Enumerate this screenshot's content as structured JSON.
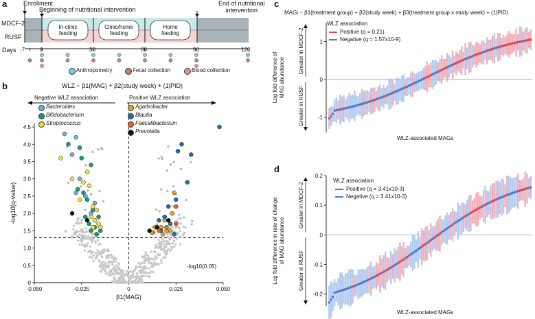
{
  "panel_a": {
    "letter": "a",
    "enrollment": "Enrollment",
    "beginning": "Beginning of nutritional intervention",
    "end_line1": "End of nutritional",
    "end_line2": "intervention",
    "arm1": "MDCF-2",
    "arm2": "RUSF",
    "phases": [
      {
        "line1": "In-clinic",
        "line2": "feeding"
      },
      {
        "line1": "Clinic/home",
        "line2": "feeding"
      },
      {
        "line1": "Home",
        "line2": "feeding"
      }
    ],
    "days_label": "Days",
    "day_ticks": [
      "-7",
      "0",
      "30",
      "60",
      "90",
      "120"
    ],
    "legend": [
      "Anthropometry",
      "Fecal collection",
      "Blood collection"
    ],
    "colors": {
      "mdcf": "#c8e8ea",
      "rusf": "#f4d4d4",
      "outer": "#a9b3b8",
      "anthro": "#7ec8e3",
      "fecal": "#b5866a",
      "blood": "#ee8f8f"
    }
  },
  "panel_b": {
    "letter": "b",
    "title": "WLZ ~ β1(MAG) + β2(study week) + (1|PID)",
    "neg_header": "Negative WLZ association",
    "pos_header": "Positive WLZ association",
    "legend_neg": [
      {
        "name": "Bacteroides",
        "color": "#6fb1dc"
      },
      {
        "name": "Bifidobacterium",
        "color": "#1b9a7a"
      },
      {
        "name": "Streptococcus",
        "color": "#f0e040"
      }
    ],
    "legend_pos": [
      {
        "name": "Agathobacter",
        "color": "#e8a21a"
      },
      {
        "name": "Blautia",
        "color": "#1f6fa8"
      },
      {
        "name": "Faecalibacterium",
        "color": "#d96a1e"
      },
      {
        "name": "Prevotella",
        "color": "#111111"
      }
    ],
    "threshold_label": "-log10(0.05)"
  },
  "panel_c": {
    "letter": "c",
    "title": "MAGi ~ β1(treatment group) + β2(study week) + β3(treatment group x study week) + (1|PID)",
    "ylabel_line1": "Log fold difference of",
    "ylabel_line2": "MAG abundance",
    "greater_mdcf": "Greater in MDCF-2",
    "greater_rusf": "Greater in RUSF",
    "legend_title": "WLZ association",
    "legend": [
      {
        "label": "Positive (q = 0.21)",
        "color": "#e0485a"
      },
      {
        "label": "Negative (q = 1.57x10-9)",
        "color": "#4a7fd0"
      }
    ],
    "xlabel": "WLZ-associated MAGs"
  },
  "panel_d": {
    "letter": "d",
    "ylabel_line1": "Log fold difference in rate of change",
    "ylabel_line2": "of MAG abundance",
    "greater_mdcf": "Greater in MDCF-2",
    "greater_rusf": "Greater in RUSF",
    "legend_title": "WLZ association",
    "legend": [
      {
        "label": "Positive (q = 3.41x10-3)",
        "color": "#e0485a"
      },
      {
        "label": "Negative (q = 3.41x10-3)",
        "color": "#4a7fd0"
      }
    ],
    "xlabel": "WLZ-associated MAGs"
  },
  "chart_data": [
    {
      "id": "volcano",
      "type": "scatter",
      "xlabel": "β1(MAG)",
      "ylabel": "-log10(q-value)",
      "xlim": [
        -0.05,
        0.05
      ],
      "ylim": [
        0,
        4.6
      ],
      "xticks": [
        "-0.050",
        "-0.025",
        "0",
        "0.025",
        "0.050"
      ],
      "yticks": [
        "0",
        "0.5",
        "1.0",
        "1.5",
        "2.0",
        "2.5",
        "3.0",
        "3.5",
        "4.0",
        "4.5"
      ],
      "threshold": 1.301,
      "series": [
        {
          "name": "Bacteroides",
          "points": [
            [
              -0.034,
              4.3
            ],
            [
              -0.028,
              4.2
            ],
            [
              -0.03,
              3.7
            ],
            [
              -0.026,
              3.0
            ],
            [
              -0.028,
              2.6
            ],
            [
              -0.023,
              2.5
            ],
            [
              -0.018,
              2.3
            ],
            [
              -0.02,
              2.0
            ]
          ]
        },
        {
          "name": "Bifidobacterium",
          "points": [
            [
              -0.032,
              4.0
            ],
            [
              -0.026,
              3.9
            ],
            [
              -0.025,
              3.6
            ],
            [
              -0.02,
              3.4
            ],
            [
              -0.027,
              2.7
            ],
            [
              -0.024,
              2.6
            ],
            [
              -0.022,
              2.4
            ],
            [
              -0.019,
              2.1
            ],
            [
              -0.023,
              1.9
            ],
            [
              -0.016,
              1.9
            ],
            [
              -0.021,
              1.7
            ],
            [
              -0.018,
              1.6
            ],
            [
              -0.02,
              1.5
            ],
            [
              -0.015,
              1.5
            ],
            [
              -0.017,
              1.4
            ]
          ]
        },
        {
          "name": "Streptococcus",
          "points": [
            [
              -0.036,
              3.6
            ],
            [
              -0.022,
              3.2
            ],
            [
              -0.03,
              3.0
            ],
            [
              -0.024,
              2.9
            ],
            [
              -0.021,
              2.8
            ],
            [
              -0.026,
              2.4
            ],
            [
              -0.019,
              2.2
            ],
            [
              -0.017,
              2.1
            ],
            [
              -0.02,
              1.9
            ],
            [
              -0.018,
              1.8
            ],
            [
              -0.016,
              1.7
            ],
            [
              -0.019,
              1.6
            ],
            [
              -0.015,
              1.6
            ]
          ]
        },
        {
          "name": "Agathobacter",
          "points": [
            [
              0.024,
              2.6
            ],
            [
              0.023,
              2.0
            ],
            [
              0.019,
              1.8
            ],
            [
              0.017,
              1.6
            ],
            [
              0.014,
              1.6
            ],
            [
              0.02,
              1.5
            ],
            [
              0.013,
              1.45
            ],
            [
              0.018,
              1.4
            ],
            [
              0.012,
              1.45
            ],
            [
              0.022,
              1.5
            ]
          ]
        },
        {
          "name": "Blautia",
          "points": [
            [
              0.048,
              4.5
            ],
            [
              0.028,
              4.0
            ],
            [
              0.026,
              3.8
            ],
            [
              0.033,
              3.7
            ],
            [
              0.031,
              2.9
            ],
            [
              0.025,
              2.4
            ],
            [
              0.021,
              2.2
            ],
            [
              0.019,
              1.9
            ],
            [
              0.016,
              1.8
            ],
            [
              0.022,
              1.7
            ],
            [
              0.017,
              1.5
            ],
            [
              0.024,
              1.4
            ]
          ]
        },
        {
          "name": "Faecalibacterium",
          "points": [
            [
              0.025,
              2.2
            ],
            [
              0.025,
              1.7
            ],
            [
              0.02,
              1.6
            ],
            [
              0.016,
              1.5
            ]
          ]
        },
        {
          "name": "Prevotella",
          "points": [
            [
              -0.03,
              2.0
            ],
            [
              -0.022,
              1.8
            ],
            [
              0.021,
              1.8
            ],
            [
              0.015,
              1.6
            ],
            [
              0.011,
              1.5
            ]
          ]
        }
      ]
    },
    {
      "id": "lfd-abundance",
      "type": "scatter",
      "ylim": [
        -1.4,
        1.5
      ],
      "yticks": [
        "-1",
        "0",
        "1"
      ],
      "n": 112,
      "y_start": -0.85,
      "y_end": 1.05,
      "ci_half_width": 0.35
    },
    {
      "id": "lfd-rate",
      "type": "scatter",
      "ylim": [
        -0.24,
        0.2
      ],
      "yticks": [
        "-0.2",
        "-0.1",
        "0",
        "0.1",
        "0.2"
      ],
      "n": 112,
      "y_start": -0.2,
      "y_end": 0.16,
      "ci_half_width": 0.055
    }
  ]
}
